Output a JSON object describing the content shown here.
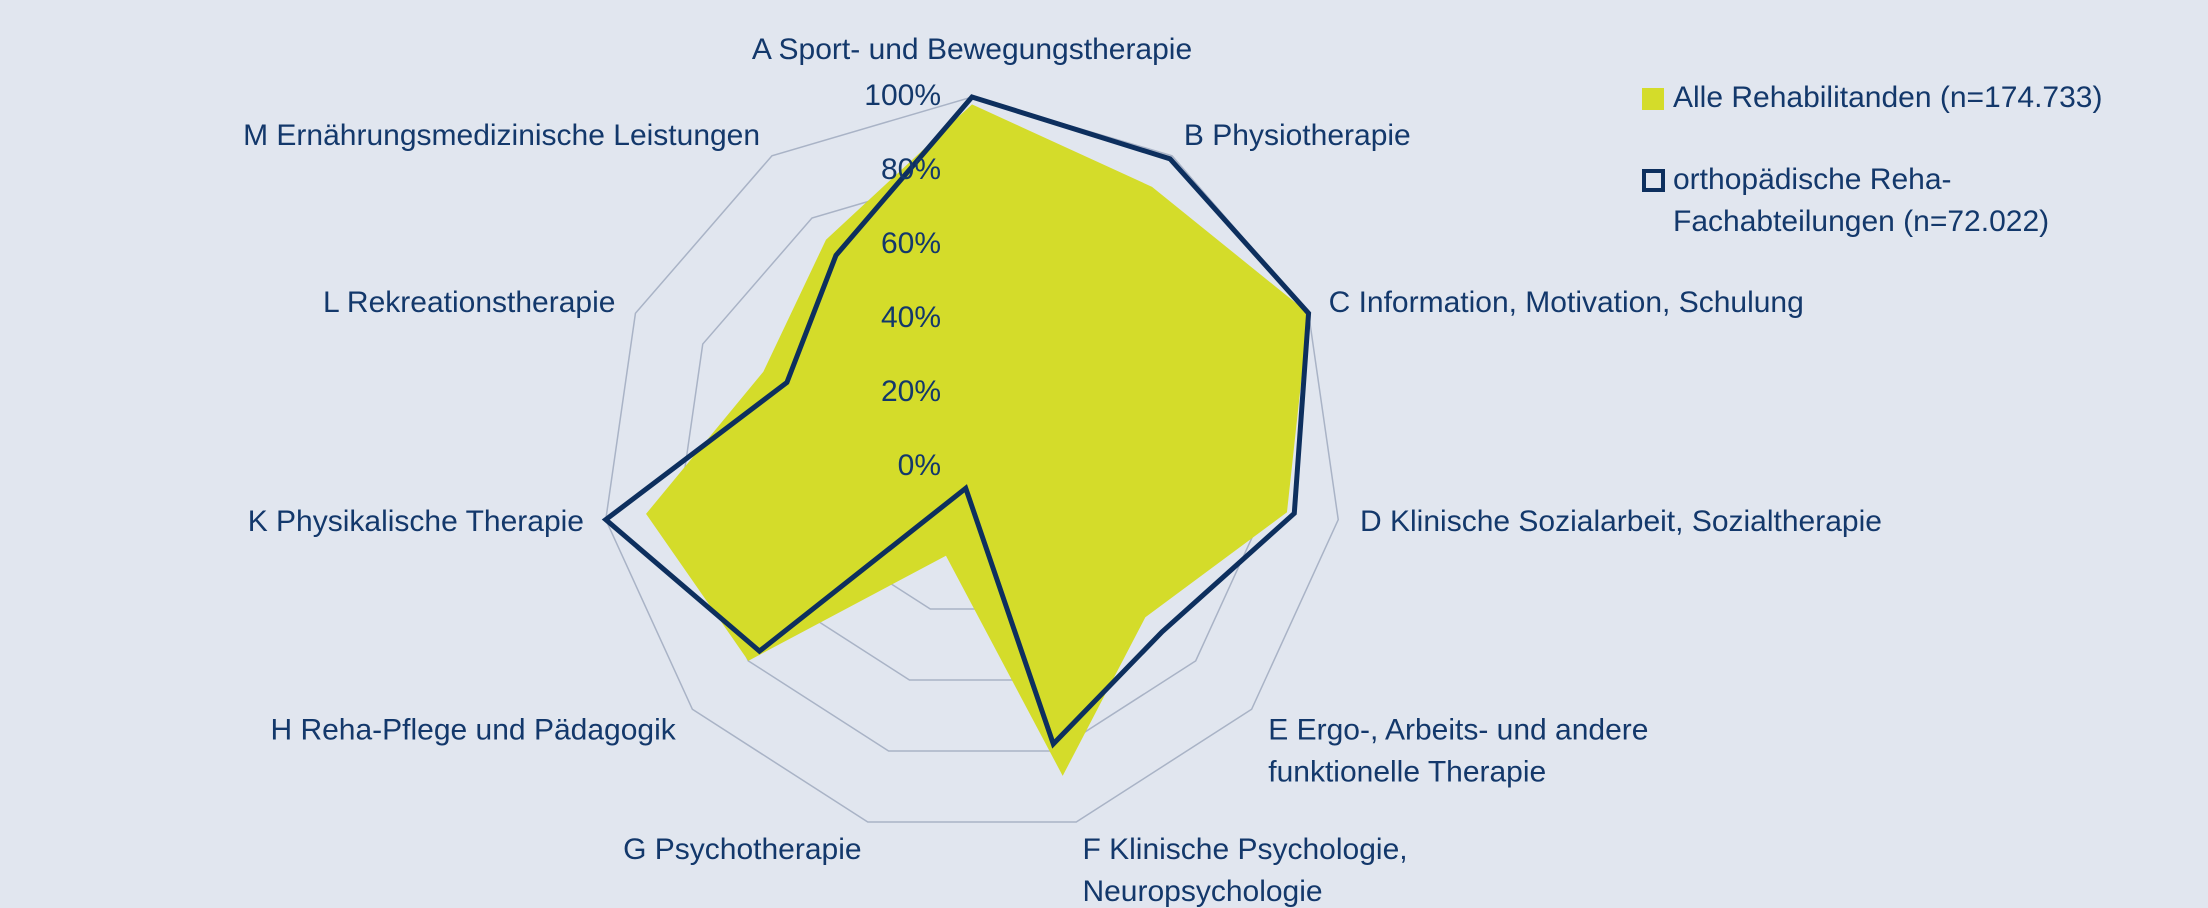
{
  "chart_data": {
    "type": "radar",
    "categories": [
      "A Sport- und Bewegungstherapie",
      "B Physiotherapie",
      "C Information, Motivation, Schulung",
      "D Klinische Sozialarbeit, Sozialtherapie",
      "E Ergo-, Arbeits- und andere\nfunktionelle Therapie",
      "F Klinische Psychologie,\nNeuropsychologie",
      "G Psychotherapie",
      "H Reha-Pflege und Pädagogik",
      "K Physikalische Therapie",
      "L Rekreationstherapie",
      "M Ernährungsmedizinische Leistungen"
    ],
    "series": [
      {
        "name": "Alle Rehabilitanden (n=174.733)",
        "color": "#d4dc2a",
        "fill": true,
        "values": [
          98,
          90,
          100,
          86,
          62,
          87,
          25,
          80,
          89,
          62,
          73
        ]
      },
      {
        "name": "orthopädische Reha-\nFachabteilungen (n=72.022)",
        "color": "#0d2f5e",
        "fill": false,
        "values": [
          100,
          99,
          100,
          88,
          68,
          78,
          6,
          76,
          100,
          55,
          68
        ]
      }
    ],
    "rlim": [
      0,
      100
    ],
    "rticks": [
      {
        "value": 0,
        "label": "0%"
      },
      {
        "value": 20,
        "label": "20%"
      },
      {
        "value": 40,
        "label": "40%"
      },
      {
        "value": 60,
        "label": "60%"
      },
      {
        "value": 80,
        "label": "80%"
      },
      {
        "value": 100,
        "label": "100%"
      }
    ],
    "grid": true,
    "legend": "top-right"
  }
}
